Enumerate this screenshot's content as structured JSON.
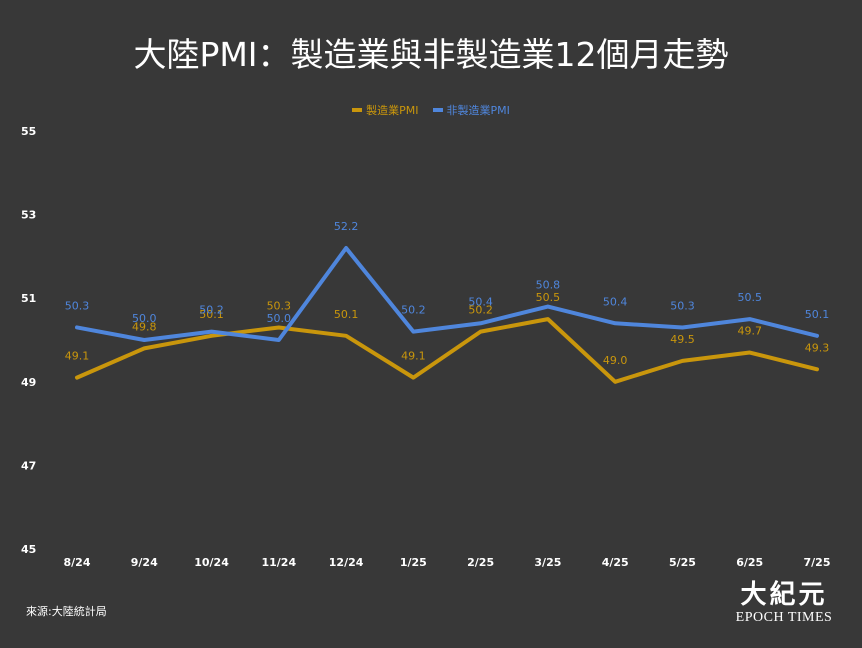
{
  "title": "大陸PMI：製造業與非製造業12個月走勢",
  "source": "來源:大陸統計局",
  "logo": {
    "chinese": "大紀元",
    "english": "EPOCH TIMES"
  },
  "colors": {
    "manufacturing": "#c9960c",
    "non_manufacturing": "#4f86dc",
    "background": "#383838"
  },
  "chart_data": {
    "type": "line",
    "categories": [
      "8/24",
      "9/24",
      "10/24",
      "11/24",
      "12/24",
      "1/25",
      "2/25",
      "3/25",
      "4/25",
      "5/25",
      "6/25",
      "7/25"
    ],
    "series": [
      {
        "name": "製造業PMI",
        "values": [
          49.1,
          49.8,
          50.1,
          50.3,
          50.1,
          49.1,
          50.2,
          50.5,
          49.0,
          49.5,
          49.7,
          49.3
        ]
      },
      {
        "name": "非製造業PMI",
        "values": [
          50.3,
          50.0,
          50.2,
          50.0,
          52.2,
          50.2,
          50.4,
          50.8,
          50.4,
          50.3,
          50.5,
          50.1
        ]
      }
    ],
    "yticks": [
      45,
      47,
      49,
      51,
      53,
      55
    ],
    "ylim": [
      45,
      55
    ],
    "grid": false,
    "legend_position": "top-center",
    "data_labels": true
  }
}
